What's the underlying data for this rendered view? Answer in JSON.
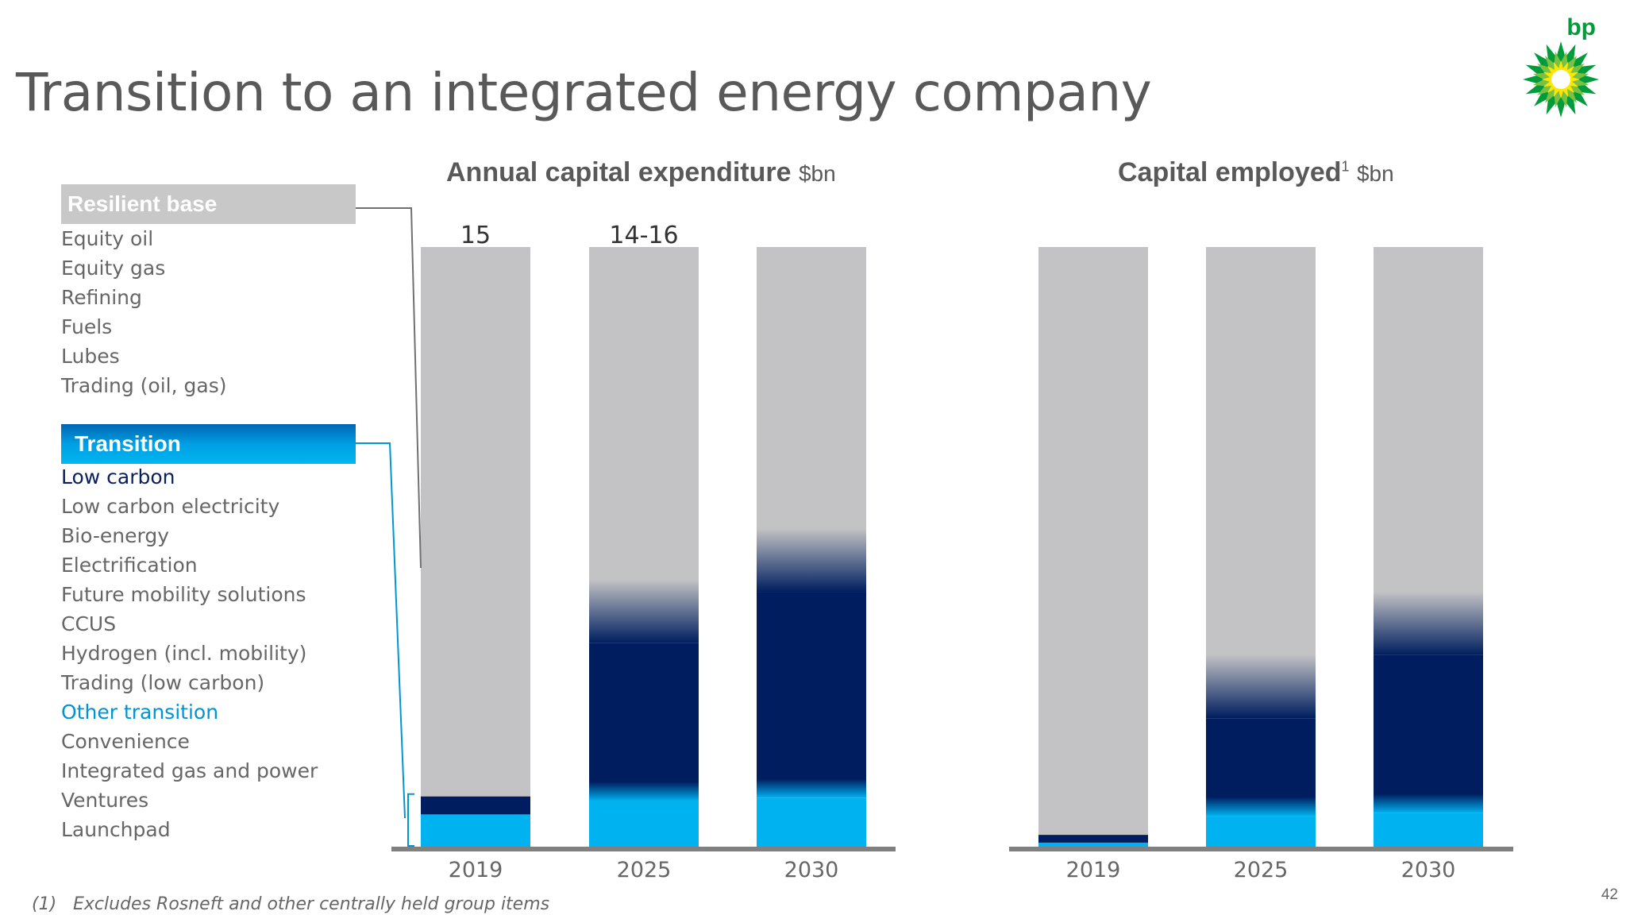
{
  "page": {
    "title": "Transition to an integrated energy company",
    "logo_text": "bp",
    "page_number": "42",
    "footnote_number": "(1)",
    "footnote_text": "Excludes Rosneft and other centrally held group items"
  },
  "legend_panel": {
    "resilient": {
      "header": "Resilient base",
      "items": [
        "Equity oil",
        "Equity gas",
        "Refining",
        "Fuels",
        "Lubes",
        "Trading (oil, gas)"
      ]
    },
    "transition": {
      "header": "Transition",
      "items": [
        "Low carbon",
        "Low carbon electricity",
        "Bio-energy",
        "Electrification",
        "Future mobility solutions",
        "CCUS",
        "Hydrogen (incl. mobility)",
        "Trading (low carbon)",
        "Other transition",
        "Convenience",
        "Integrated gas and power",
        "Ventures",
        "Launchpad"
      ]
    }
  },
  "colors": {
    "resilient": "#c3c3c5",
    "low_carbon": "#001e5f",
    "other_transition": "#00b2ef",
    "axis": "#808080",
    "resilient_connector": "#707070",
    "transition_connector": "#0096d6"
  },
  "chart_data": [
    {
      "type": "bar",
      "stacked": true,
      "title": "Annual capital expenditure",
      "unit": "$bn",
      "categories": [
        "2019",
        "2025",
        "2030"
      ],
      "totals_shown": [
        "15",
        "14-16",
        ""
      ],
      "series_share": {
        "other_transition": [
          0.055,
          0.08,
          0.085
        ],
        "low_carbon": [
          0.03,
          0.3,
          0.38
        ],
        "resilient": [
          0.915,
          0.62,
          0.535
        ]
      }
    },
    {
      "type": "bar",
      "stacked": true,
      "title": "Capital employed",
      "title_superscript": "1",
      "unit": "$bn",
      "categories": [
        "2019",
        "2025",
        "2030"
      ],
      "totals_shown": [
        "",
        "",
        ""
      ],
      "series_share": {
        "other_transition": [
          0.008,
          0.055,
          0.06
        ],
        "low_carbon": [
          0.013,
          0.2,
          0.3
        ],
        "resilient": [
          0.979,
          0.745,
          0.64
        ]
      }
    }
  ]
}
